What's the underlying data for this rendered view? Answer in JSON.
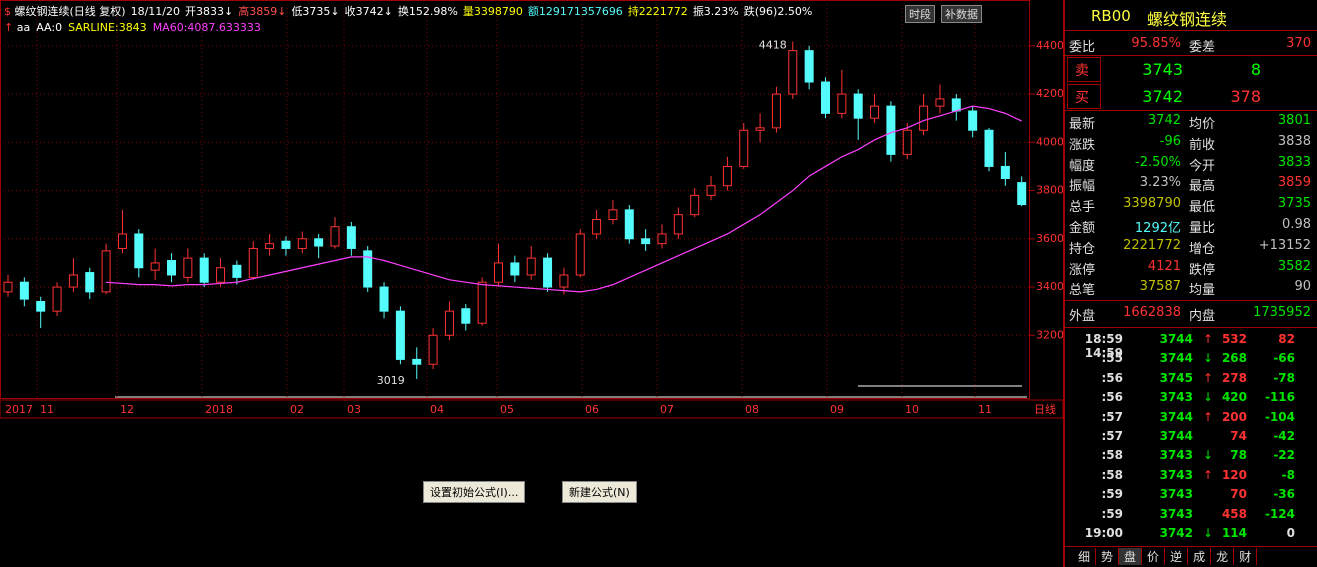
{
  "header": {
    "segments": [
      {
        "text": "螺纹钢连续(日线 复权)",
        "color": "#ffffff"
      },
      {
        "text": "18/11/20",
        "color": "#ffffff"
      },
      {
        "text": "开3833↓",
        "color": "#ffffff"
      },
      {
        "text": "高3859↓",
        "color": "#ff5050"
      },
      {
        "text": "低3735↓",
        "color": "#ffffff"
      },
      {
        "text": "收3742↓",
        "color": "#ffffff"
      },
      {
        "text": "换152.98%",
        "color": "#ffffff"
      },
      {
        "text": "量3398790",
        "color": "#ffff00"
      },
      {
        "text": "额129171357696",
        "color": "#54fcfc"
      },
      {
        "text": "持2221772",
        "color": "#ffff00"
      },
      {
        "text": "振3.23%",
        "color": "#ffffff"
      },
      {
        "text": "跌(96)2.50%",
        "color": "#ffffff"
      }
    ],
    "indicators": [
      {
        "text": "aa",
        "color": "#ffffff"
      },
      {
        "text": "AA:0",
        "color": "#ffffff"
      },
      {
        "text": "SARLINE:3843",
        "color": "#ffff00"
      },
      {
        "text": "MA60:4087.633333",
        "color": "#ff40ff"
      }
    ],
    "buttons": [
      "时段",
      "补数据"
    ]
  },
  "chart_data": {
    "type": "candlestick",
    "open": [
      3380,
      3420,
      3340,
      3300,
      3400,
      3460,
      3380,
      3560,
      3620,
      3470,
      3510,
      3440,
      3520,
      3420,
      3490,
      3440,
      3560,
      3590,
      3560,
      3600,
      3570,
      3650,
      3550,
      3400,
      3300,
      3100,
      3080,
      3200,
      3310,
      3250,
      3420,
      3500,
      3450,
      3520,
      3400,
      3450,
      3620,
      3680,
      3720,
      3600,
      3580,
      3620,
      3700,
      3780,
      3820,
      3900,
      4050,
      4060,
      4200,
      4380,
      4250,
      4120,
      4200,
      4100,
      4150,
      3950,
      4050,
      4150,
      4180,
      4130,
      4050,
      3900,
      3833
    ],
    "high": [
      3450,
      3440,
      3360,
      3420,
      3520,
      3480,
      3580,
      3720,
      3640,
      3560,
      3540,
      3560,
      3540,
      3520,
      3510,
      3590,
      3620,
      3610,
      3630,
      3620,
      3690,
      3670,
      3570,
      3420,
      3320,
      3150,
      3230,
      3340,
      3330,
      3440,
      3580,
      3530,
      3570,
      3540,
      3480,
      3640,
      3720,
      3760,
      3740,
      3640,
      3660,
      3730,
      3810,
      3860,
      3940,
      4080,
      4120,
      4230,
      4418,
      4400,
      4270,
      4300,
      4220,
      4200,
      4170,
      4080,
      4200,
      4240,
      4200,
      4150,
      4060,
      3960,
      3859
    ],
    "low": [
      3360,
      3320,
      3230,
      3280,
      3380,
      3350,
      3370,
      3540,
      3440,
      3430,
      3420,
      3420,
      3400,
      3400,
      3410,
      3430,
      3530,
      3530,
      3540,
      3520,
      3560,
      3530,
      3380,
      3270,
      3080,
      3019,
      3060,
      3180,
      3220,
      3240,
      3400,
      3420,
      3430,
      3380,
      3370,
      3440,
      3600,
      3660,
      3580,
      3550,
      3560,
      3600,
      3690,
      3760,
      3800,
      3890,
      4000,
      4040,
      4180,
      4220,
      4100,
      4100,
      4010,
      4080,
      3920,
      3930,
      4030,
      4120,
      4090,
      4020,
      3880,
      3820,
      3735
    ],
    "close": [
      3420,
      3350,
      3300,
      3400,
      3450,
      3380,
      3550,
      3620,
      3480,
      3500,
      3450,
      3520,
      3420,
      3480,
      3440,
      3560,
      3580,
      3560,
      3600,
      3570,
      3650,
      3560,
      3400,
      3300,
      3100,
      3080,
      3200,
      3300,
      3250,
      3420,
      3500,
      3450,
      3520,
      3400,
      3450,
      3620,
      3680,
      3720,
      3600,
      3580,
      3620,
      3700,
      3780,
      3820,
      3900,
      4050,
      4060,
      4200,
      4380,
      4250,
      4120,
      4200,
      4100,
      4150,
      3950,
      4050,
      4150,
      4180,
      4130,
      4050,
      3900,
      3850,
      3742
    ],
    "series": [
      {
        "name": "MA60",
        "color": "#ff40ff",
        "values": [
          null,
          null,
          null,
          null,
          null,
          null,
          3420,
          3415,
          3410,
          3410,
          3405,
          3410,
          3410,
          3415,
          3420,
          3435,
          3450,
          3465,
          3480,
          3495,
          3510,
          3525,
          3525,
          3510,
          3490,
          3470,
          3450,
          3430,
          3420,
          3410,
          3405,
          3400,
          3395,
          3390,
          3385,
          3380,
          3390,
          3410,
          3440,
          3470,
          3500,
          3530,
          3560,
          3590,
          3620,
          3660,
          3700,
          3750,
          3800,
          3860,
          3900,
          3940,
          3970,
          4010,
          4040,
          4060,
          4090,
          4110,
          4130,
          4150,
          4140,
          4120,
          4088
        ]
      }
    ],
    "up_color": "#ff3232",
    "down_color": "#54fcfc",
    "ylim": [
      2940,
      4590
    ],
    "yticks": [
      3200,
      3400,
      3600,
      3800,
      4000,
      4200,
      4400
    ],
    "x_labels": [
      "2017",
      "11",
      "12",
      "2018",
      "02",
      "03",
      "04",
      "05",
      "06",
      "07",
      "08",
      "09",
      "10",
      "11"
    ],
    "period": "日线",
    "annotations": [
      "4418",
      "3019"
    ],
    "grid": true
  },
  "buttons": [
    "设置初始公式(I)...",
    "新建公式(N)"
  ],
  "quote": {
    "code": "RB00",
    "name": "螺纹钢连续",
    "wb": [
      {
        "text": "委比"
      },
      {
        "text": "95.85%",
        "color": "#ff3232"
      },
      {
        "text": "委差"
      },
      {
        "text": "370",
        "color": "#ff3232"
      }
    ],
    "book": [
      [
        {
          "text": "卖",
          "color": "#ff3232"
        },
        {
          "text": "3743",
          "color": "#00ff00"
        },
        {
          "text": "8",
          "color": "#00ff00"
        }
      ],
      [
        {
          "text": "买",
          "color": "#ff3232"
        },
        {
          "text": "3742",
          "color": "#00ff00"
        },
        {
          "text": "378",
          "color": "#ff3232"
        }
      ]
    ],
    "stats": [
      [
        {
          "text": "最新"
        },
        {
          "text": "3742",
          "color": "#00e600"
        },
        {
          "text": "均价"
        },
        {
          "text": "3801",
          "color": "#00e600"
        }
      ],
      [
        {
          "text": "涨跌"
        },
        {
          "text": "-96",
          "color": "#00e600"
        },
        {
          "text": "前收"
        },
        {
          "text": "3838",
          "color": "#c0c0c0"
        }
      ],
      [
        {
          "text": "幅度"
        },
        {
          "text": "-2.50%",
          "color": "#00e600"
        },
        {
          "text": "今开"
        },
        {
          "text": "3833",
          "color": "#00e600"
        }
      ],
      [
        {
          "text": "振幅"
        },
        {
          "text": "3.23%",
          "color": "#c0c0c0"
        },
        {
          "text": "最高"
        },
        {
          "text": "3859",
          "color": "#ff3232"
        }
      ],
      [
        {
          "text": "总手"
        },
        {
          "text": "3398790",
          "color": "#c0c000"
        },
        {
          "text": "最低"
        },
        {
          "text": "3735",
          "color": "#00e600"
        }
      ],
      [
        {
          "text": "金额"
        },
        {
          "text": "1292亿",
          "color": "#54fcfc"
        },
        {
          "text": "量比"
        },
        {
          "text": "0.98",
          "color": "#c0c0c0"
        }
      ],
      [
        {
          "text": "持仓"
        },
        {
          "text": "2221772",
          "color": "#c0c000"
        },
        {
          "text": "增仓"
        },
        {
          "text": "+13152",
          "color": "#c0c0c0"
        }
      ],
      [
        {
          "text": "涨停"
        },
        {
          "text": "4121",
          "color": "#ff3232"
        },
        {
          "text": "跌停"
        },
        {
          "text": "3582",
          "color": "#00e600"
        }
      ],
      [
        {
          "text": "总笔"
        },
        {
          "text": "37587",
          "color": "#c0c000"
        },
        {
          "text": "均量"
        },
        {
          "text": "90",
          "color": "#c0c0c0"
        }
      ]
    ],
    "outer": [
      {
        "text": "外盘"
      },
      {
        "text": "1662838",
        "color": "#ff3232"
      },
      {
        "text": "内盘"
      },
      {
        "text": "1735952",
        "color": "#00e600"
      }
    ]
  },
  "ticks": [
    {
      "time": "18:59 14:59",
      "price": "3744",
      "arrow": "↑",
      "volume": "532",
      "change": "82",
      "side": "up"
    },
    {
      "time": ":55",
      "price": "3744",
      "arrow": "↓",
      "volume": "268",
      "change": "-66",
      "side": "down"
    },
    {
      "time": ":56",
      "price": "3745",
      "arrow": "↑",
      "volume": "278",
      "change": "-78",
      "side": "up"
    },
    {
      "time": ":56",
      "price": "3743",
      "arrow": "↓",
      "volume": "420",
      "change": "-116",
      "side": "down"
    },
    {
      "time": ":57",
      "price": "3744",
      "arrow": "↑",
      "volume": "200",
      "change": "-104",
      "side": "up"
    },
    {
      "time": ":57",
      "price": "3744",
      "arrow": null,
      "volume": "74",
      "change": "-42",
      "side": "up"
    },
    {
      "time": ":58",
      "price": "3743",
      "arrow": "↓",
      "volume": "78",
      "change": "-22",
      "side": "down"
    },
    {
      "time": ":58",
      "price": "3743",
      "arrow": "↑",
      "volume": "120",
      "change": "-8",
      "side": "up"
    },
    {
      "time": ":59",
      "price": "3743",
      "arrow": null,
      "volume": "70",
      "change": "-36",
      "side": "up"
    },
    {
      "time": ":59",
      "price": "3743",
      "arrow": null,
      "volume": "458",
      "change": "-124",
      "side": "up"
    },
    {
      "time": "19:00",
      "price": "3742",
      "arrow": "↓",
      "volume": "114",
      "change": "0",
      "side": "down"
    }
  ],
  "tabs": [
    "细",
    "势",
    "盘",
    "价",
    "逆",
    "成",
    "龙",
    "财"
  ]
}
